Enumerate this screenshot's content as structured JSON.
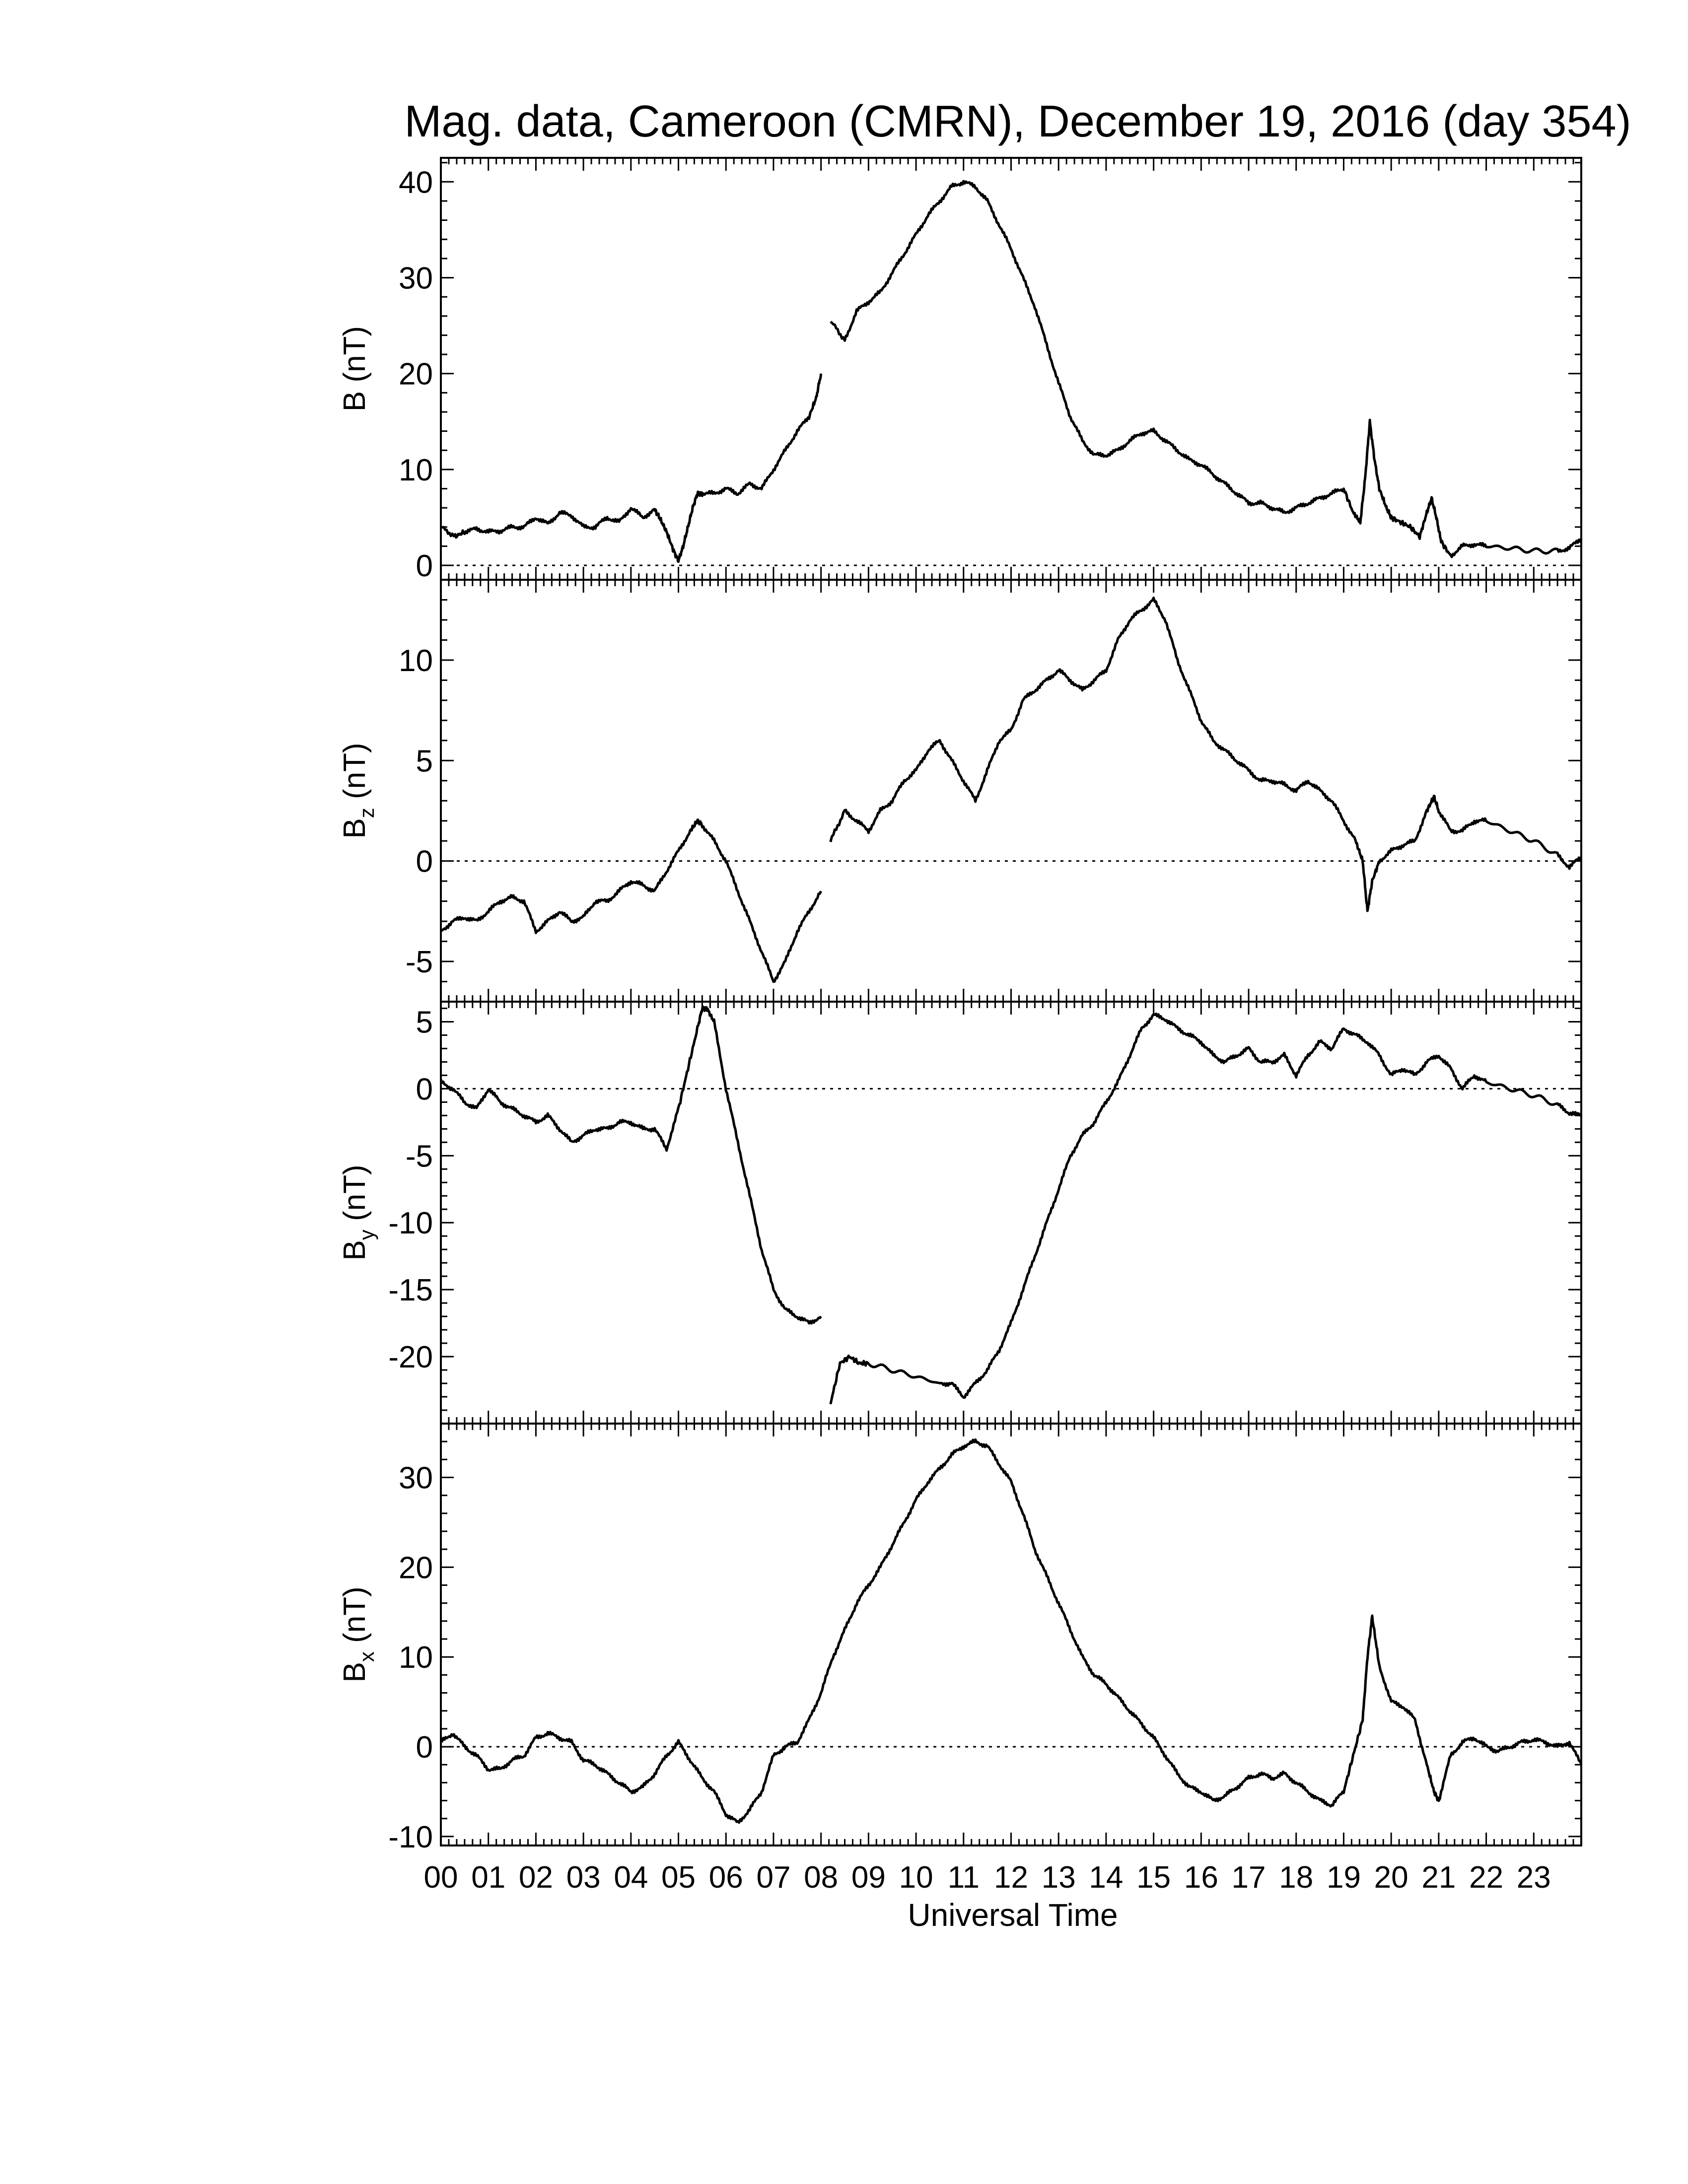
{
  "chart_data": {
    "type": "line",
    "title": "Mag. data, Cameroon (CMRN), December 19, 2016 (day 354)",
    "xlabel": "Universal Time",
    "x_ticks": [
      "00",
      "01",
      "02",
      "03",
      "04",
      "05",
      "06",
      "07",
      "08",
      "09",
      "10",
      "11",
      "12",
      "13",
      "14",
      "15",
      "16",
      "17",
      "18",
      "19",
      "20",
      "21",
      "22",
      "23"
    ],
    "xlim": [
      0,
      24
    ],
    "grid": false,
    "zero_line": "dotted",
    "panels": [
      {
        "name": "B",
        "ylabel_main": "B",
        "ylabel_sub": "",
        "ylabel_unit": "(nT)",
        "ylim": [
          -1.5,
          42.5
        ],
        "y_ticks": [
          0,
          10,
          20,
          30,
          40
        ],
        "segments": [
          {
            "x": [
              0.0,
              0.3,
              0.5,
              0.75,
              1.0,
              1.25,
              1.5,
              1.75,
              2.0,
              2.25,
              2.5,
              2.75,
              3.0,
              3.25,
              3.5,
              3.75,
              4.0,
              4.25,
              4.5,
              4.6,
              4.75,
              4.9,
              5.0,
              5.1,
              5.2,
              5.3,
              5.4,
              5.5,
              5.75,
              6.0,
              6.25,
              6.5,
              6.75,
              7.0,
              7.25,
              7.5,
              7.75,
              7.9,
              8.0
            ],
            "y": [
              4.0,
              3.0,
              3.5,
              3.8,
              3.5,
              3.6,
              4.0,
              4.0,
              5.0,
              4.3,
              5.5,
              5.2,
              4.0,
              4.0,
              5.0,
              4.5,
              6.0,
              5.0,
              5.8,
              5.0,
              3.5,
              1.5,
              0.5,
              2.0,
              4.0,
              6.0,
              7.5,
              7.5,
              7.5,
              8.0,
              7.5,
              8.5,
              8.0,
              10.0,
              12.0,
              14.0,
              15.5,
              17.5,
              20.0
            ]
          },
          {
            "x": [
              8.2,
              8.5,
              8.75,
              9.0,
              9.25,
              9.5,
              9.75,
              10.0,
              10.25,
              10.5,
              10.75,
              11.0,
              11.25,
              11.5,
              11.75,
              12.0,
              12.25,
              12.5,
              12.75,
              13.0,
              13.25,
              13.5,
              13.75,
              14.0,
              14.25,
              14.5,
              14.75,
              15.0,
              15.25,
              15.5,
              15.75,
              16.0,
              16.25,
              16.5,
              16.75,
              17.0,
              17.25,
              17.5,
              17.75,
              18.0,
              18.25,
              18.5,
              18.75,
              19.0,
              19.2,
              19.35,
              19.45,
              19.55,
              19.65,
              19.75,
              19.9,
              20.0,
              20.2,
              20.4,
              20.6,
              20.75,
              20.85,
              20.95,
              21.05,
              21.25,
              21.5,
              21.75,
              22.0,
              22.5,
              23.0,
              23.5,
              23.75,
              24.0
            ],
            "y": [
              25.5,
              23.5,
              26.5,
              27.5,
              28.5,
              30.5,
              32.5,
              34.5,
              36.5,
              38.0,
              39.5,
              40.0,
              39.5,
              38.0,
              35.5,
              33.0,
              30.0,
              27.0,
              23.0,
              19.0,
              15.5,
              13.0,
              11.5,
              11.5,
              12.0,
              13.0,
              13.8,
              14.0,
              13.0,
              12.0,
              11.0,
              10.5,
              9.5,
              8.5,
              7.5,
              6.5,
              6.5,
              6.0,
              5.5,
              6.0,
              6.5,
              7.0,
              7.5,
              8.0,
              5.5,
              4.5,
              9.0,
              15.0,
              11.0,
              8.0,
              6.0,
              5.0,
              4.5,
              4.0,
              3.0,
              5.5,
              7.0,
              5.0,
              2.5,
              1.0,
              2.0,
              2.2,
              2.0,
              1.8,
              1.5,
              1.5,
              1.8,
              2.8
            ]
          }
        ]
      },
      {
        "name": "Bz",
        "ylabel_main": "B",
        "ylabel_sub": "z",
        "ylabel_unit": "(nT)",
        "ylim": [
          -7.0,
          14.0
        ],
        "y_ticks": [
          -5,
          0,
          5,
          10
        ],
        "segments": [
          {
            "x": [
              0.0,
              0.25,
              0.5,
              0.75,
              1.0,
              1.25,
              1.5,
              1.75,
              2.0,
              2.25,
              2.5,
              2.75,
              3.0,
              3.25,
              3.5,
              3.75,
              4.0,
              4.25,
              4.5,
              4.75,
              5.0,
              5.25,
              5.4,
              5.5,
              5.75,
              6.0,
              6.25,
              6.5,
              6.75,
              7.0,
              7.25,
              7.5,
              7.75,
              8.0
            ],
            "y": [
              -3.5,
              -3.0,
              -2.8,
              -3.0,
              -2.5,
              -2.0,
              -1.8,
              -2.0,
              -3.5,
              -3.0,
              -2.5,
              -3.0,
              -2.8,
              -2.0,
              -2.0,
              -1.5,
              -1.0,
              -1.2,
              -1.5,
              -0.5,
              0.5,
              1.5,
              2.0,
              1.8,
              1.0,
              0.0,
              -1.5,
              -3.0,
              -4.5,
              -6.0,
              -5.0,
              -3.5,
              -2.5,
              -1.5
            ]
          },
          {
            "x": [
              8.2,
              8.5,
              8.75,
              9.0,
              9.25,
              9.5,
              9.75,
              10.0,
              10.25,
              10.5,
              10.75,
              11.0,
              11.25,
              11.5,
              11.75,
              12.0,
              12.25,
              12.5,
              12.75,
              13.0,
              13.25,
              13.5,
              13.75,
              14.0,
              14.25,
              14.5,
              14.75,
              15.0,
              15.25,
              15.5,
              15.75,
              16.0,
              16.25,
              16.5,
              16.75,
              17.0,
              17.25,
              17.5,
              17.75,
              18.0,
              18.25,
              18.5,
              18.75,
              19.0,
              19.25,
              19.4,
              19.5,
              19.6,
              19.75,
              20.0,
              20.25,
              20.5,
              20.75,
              20.9,
              21.0,
              21.25,
              21.5,
              21.75,
              22.0,
              22.5,
              23.0,
              23.5,
              23.75,
              24.0
            ],
            "y": [
              1.0,
              2.5,
              2.0,
              1.5,
              2.5,
              3.0,
              4.0,
              4.5,
              5.5,
              6.0,
              5.0,
              4.0,
              3.0,
              4.5,
              6.0,
              6.5,
              8.0,
              8.5,
              9.0,
              9.5,
              9.0,
              8.5,
              9.0,
              9.5,
              11.0,
              12.0,
              12.5,
              13.0,
              12.0,
              10.0,
              8.5,
              7.0,
              6.0,
              5.5,
              5.0,
              4.5,
              4.0,
              4.0,
              3.8,
              3.5,
              4.0,
              3.5,
              3.0,
              2.0,
              1.0,
              0.0,
              -2.5,
              -1.0,
              0.0,
              0.5,
              0.8,
              1.0,
              2.5,
              3.2,
              2.5,
              1.5,
              1.5,
              2.0,
              2.0,
              1.5,
              1.0,
              0.3,
              -0.3,
              0.2
            ]
          }
        ]
      },
      {
        "name": "By",
        "ylabel_main": "B",
        "ylabel_sub": "y",
        "ylabel_unit": "(nT)",
        "ylim": [
          -25.0,
          6.5
        ],
        "y_ticks": [
          -20,
          -15,
          -10,
          -5,
          0,
          5
        ],
        "segments": [
          {
            "x": [
              0.0,
              0.25,
              0.5,
              0.75,
              1.0,
              1.25,
              1.5,
              1.75,
              2.0,
              2.25,
              2.5,
              2.75,
              3.0,
              3.25,
              3.5,
              3.75,
              4.0,
              4.25,
              4.5,
              4.75,
              5.0,
              5.2,
              5.4,
              5.5,
              5.6,
              5.75,
              6.0,
              6.25,
              6.5,
              6.75,
              7.0,
              7.25,
              7.5,
              7.75,
              8.0
            ],
            "y": [
              0.5,
              0.0,
              -1.0,
              -1.5,
              0.0,
              -1.0,
              -1.5,
              -2.0,
              -2.5,
              -2.0,
              -3.0,
              -4.0,
              -3.5,
              -3.0,
              -3.0,
              -2.5,
              -2.5,
              -3.0,
              -3.0,
              -4.5,
              -1.5,
              1.5,
              4.5,
              6.0,
              6.0,
              5.0,
              0.0,
              -4.0,
              -8.0,
              -12.0,
              -15.0,
              -16.5,
              -17.0,
              -17.5,
              -17.0
            ]
          },
          {
            "x": [
              8.2,
              8.4,
              8.6,
              8.8,
              9.0,
              9.5,
              10.0,
              10.5,
              10.75,
              11.0,
              11.25,
              11.5,
              11.75,
              12.0,
              12.25,
              12.5,
              12.75,
              13.0,
              13.25,
              13.5,
              13.75,
              14.0,
              14.25,
              14.5,
              14.75,
              15.0,
              15.25,
              15.5,
              15.75,
              16.0,
              16.25,
              16.5,
              16.75,
              17.0,
              17.25,
              17.5,
              17.75,
              18.0,
              18.25,
              18.5,
              18.75,
              19.0,
              19.25,
              19.5,
              19.75,
              20.0,
              20.25,
              20.5,
              20.75,
              21.0,
              21.25,
              21.5,
              21.75,
              22.0,
              22.5,
              23.0,
              23.5,
              23.75,
              24.0
            ],
            "y": [
              -23.5,
              -20.5,
              -20.0,
              -20.5,
              -20.5,
              -21.0,
              -21.5,
              -22.0,
              -22.0,
              -23.0,
              -22.0,
              -21.0,
              -19.5,
              -17.5,
              -15.0,
              -12.5,
              -10.0,
              -7.5,
              -5.0,
              -3.5,
              -2.5,
              -1.0,
              0.5,
              2.5,
              4.5,
              5.5,
              5.2,
              4.5,
              4.0,
              3.5,
              2.5,
              2.0,
              2.5,
              3.0,
              2.0,
              2.0,
              2.5,
              1.0,
              2.5,
              3.5,
              3.0,
              4.5,
              4.0,
              3.5,
              2.5,
              1.0,
              1.5,
              1.0,
              2.0,
              2.5,
              1.5,
              0.0,
              1.0,
              0.5,
              0.0,
              -0.5,
              -1.2,
              -1.8,
              -2.0
            ]
          }
        ]
      },
      {
        "name": "Bx",
        "ylabel_main": "B",
        "ylabel_sub": "x",
        "ylabel_unit": "(nT)",
        "ylim": [
          -11.0,
          36.0
        ],
        "y_ticks": [
          -10,
          0,
          10,
          20,
          30
        ],
        "segments": [
          {
            "x": [
              0.0,
              0.25,
              0.5,
              0.75,
              1.0,
              1.25,
              1.5,
              1.75,
              2.0,
              2.25,
              2.5,
              2.75,
              3.0,
              3.25,
              3.5,
              3.75,
              4.0,
              4.25,
              4.5,
              4.75,
              5.0,
              5.25,
              5.5,
              5.75,
              6.0,
              6.25,
              6.5,
              6.75,
              7.0,
              7.25,
              7.5,
              7.75,
              8.0,
              8.25,
              8.5,
              8.75,
              9.0,
              9.25,
              9.5,
              9.75,
              10.0,
              10.25,
              10.5,
              10.75,
              11.0,
              11.25,
              11.5,
              11.75,
              12.0,
              12.25,
              12.5,
              12.75,
              13.0,
              13.25,
              13.5,
              13.75,
              14.0,
              14.25,
              14.5,
              14.75,
              15.0,
              15.25,
              15.5,
              15.75,
              16.0,
              16.25,
              16.5,
              16.75,
              17.0,
              17.25,
              17.5,
              17.75,
              18.0,
              18.25,
              18.5,
              18.75,
              19.0,
              19.2,
              19.4,
              19.5,
              19.6,
              19.75,
              20.0,
              20.25,
              20.5,
              20.75,
              20.9,
              21.0,
              21.25,
              21.5,
              21.75,
              22.0,
              22.25,
              22.5,
              22.75,
              23.0,
              23.25,
              23.5,
              23.75,
              24.0
            ],
            "y": [
              0.5,
              1.5,
              0.0,
              -1.0,
              -2.5,
              -2.5,
              -1.5,
              -1.0,
              1.0,
              1.5,
              1.0,
              0.5,
              -1.5,
              -2.0,
              -3.0,
              -4.0,
              -5.0,
              -4.5,
              -3.0,
              -1.0,
              0.5,
              -1.5,
              -3.5,
              -5.0,
              -7.5,
              -8.5,
              -7.0,
              -5.0,
              -1.0,
              0.0,
              0.5,
              3.0,
              6.0,
              10.0,
              13.0,
              16.0,
              18.0,
              20.0,
              22.5,
              25.0,
              27.5,
              29.5,
              31.0,
              32.5,
              33.5,
              34.0,
              33.5,
              31.5,
              29.5,
              26.0,
              22.0,
              19.0,
              16.0,
              13.0,
              10.0,
              8.0,
              7.0,
              5.5,
              4.0,
              2.5,
              1.0,
              -1.0,
              -3.0,
              -4.5,
              -5.0,
              -6.0,
              -5.5,
              -4.5,
              -3.5,
              -3.0,
              -3.5,
              -3.0,
              -4.0,
              -5.0,
              -6.0,
              -6.5,
              -5.0,
              -1.0,
              3.0,
              10.0,
              14.5,
              9.0,
              5.0,
              4.5,
              3.0,
              -2.0,
              -5.0,
              -6.0,
              -1.0,
              0.5,
              1.0,
              0.0,
              -0.5,
              0.0,
              0.5,
              0.8,
              0.5,
              0.0,
              0.5,
              -2.0
            ]
          }
        ]
      }
    ]
  }
}
